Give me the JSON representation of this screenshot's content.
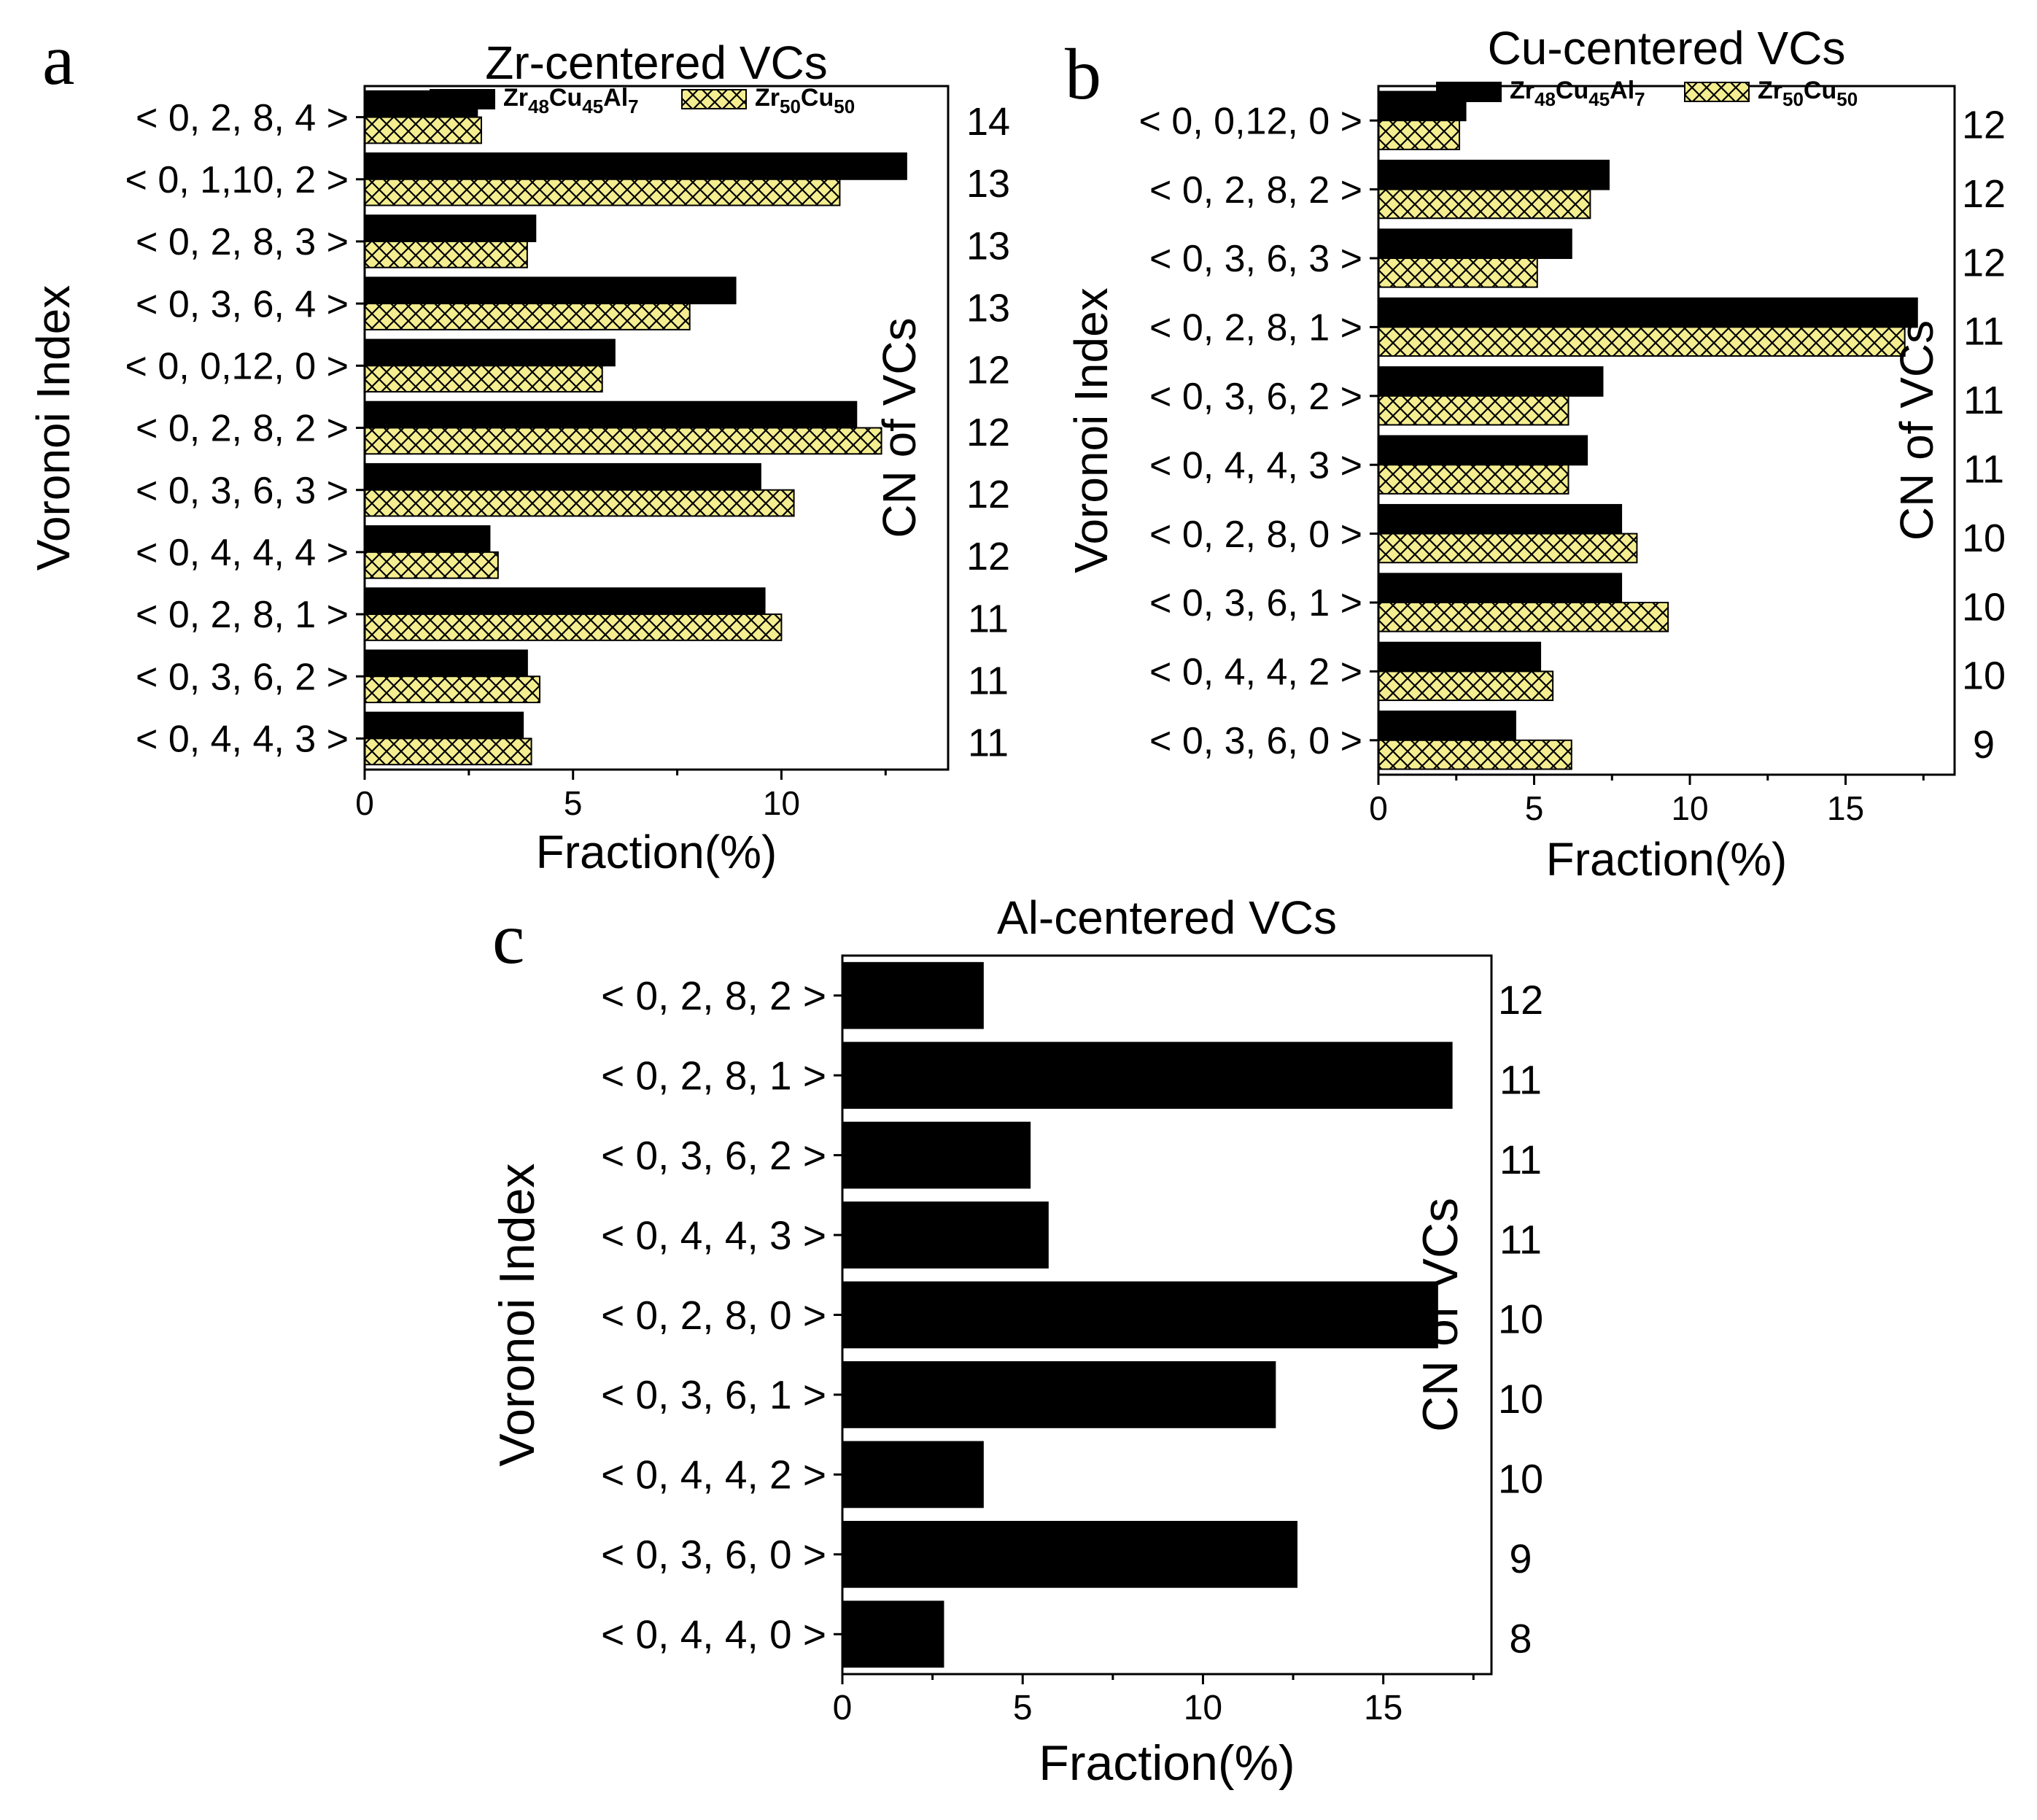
{
  "figure": {
    "colors": {
      "series_black": "#000000",
      "series_yellow": "#f4ee90",
      "hatch": "#000000",
      "axis": "#000000"
    }
  },
  "chart_data": [
    {
      "panel": "a",
      "type": "bar",
      "orientation": "horizontal",
      "title": "Zr-centered  VCs",
      "xlabel": "Fraction(%)",
      "ylabel": "Voronoi  Index",
      "ylabel_right": "CN  of  VCs",
      "xlim": [
        0,
        14
      ],
      "xticks": [
        "0",
        "5",
        "10"
      ],
      "categories": [
        "< 0, 2, 8, 4 >",
        "< 0, 1,10, 2 >",
        "< 0, 2, 8, 3 >",
        "< 0, 3, 6, 4 >",
        "< 0, 0,12, 0 >",
        "< 0, 2, 8, 2 >",
        "< 0, 3, 6, 3 >",
        "< 0, 4, 4, 4 >",
        "< 0, 2, 8, 1 >",
        "< 0, 3, 6, 2 >",
        "< 0, 4, 4, 3 >"
      ],
      "cn": [
        "14",
        "13",
        "13",
        "13",
        "12",
        "12",
        "12",
        "12",
        "11",
        "11",
        "11"
      ],
      "series": [
        {
          "name": "Zr48Cu45Al7",
          "label_parts": [
            "Zr",
            "48",
            "Cu",
            "45",
            "Al",
            "7"
          ],
          "style": "solid",
          "values": [
            2.7,
            13.0,
            4.1,
            8.9,
            6.0,
            11.8,
            9.5,
            3.0,
            9.6,
            3.9,
            3.8
          ]
        },
        {
          "name": "Zr50Cu50",
          "label_parts": [
            "Zr",
            "50",
            "Cu",
            "50"
          ],
          "style": "hatched",
          "values": [
            2.8,
            11.4,
            3.9,
            7.8,
            5.7,
            12.4,
            10.3,
            3.2,
            10.0,
            4.2,
            4.0
          ]
        }
      ],
      "legend": "top-right"
    },
    {
      "panel": "b",
      "type": "bar",
      "orientation": "horizontal",
      "title": "Cu-centered  VCs",
      "xlabel": "Fraction(%)",
      "ylabel": "Voronoi  Index",
      "ylabel_right": "CN  of  VCs",
      "xlim": [
        0,
        18.5
      ],
      "xticks": [
        "0",
        "5",
        "10",
        "15"
      ],
      "categories": [
        "< 0, 0,12, 0 >",
        "< 0, 2, 8, 2 >",
        "< 0, 3, 6, 3 >",
        "< 0, 2, 8, 1 >",
        "< 0, 3, 6, 2 >",
        "< 0, 4, 4, 3 >",
        "< 0, 2, 8, 0 >",
        "< 0, 3, 6, 1 >",
        "< 0, 4, 4, 2 >",
        "< 0, 3, 6, 0 >"
      ],
      "cn": [
        "12",
        "12",
        "12",
        "11",
        "11",
        "11",
        "10",
        "10",
        "10",
        "9"
      ],
      "series": [
        {
          "name": "Zr48Cu45Al7",
          "label_parts": [
            "Zr",
            "48",
            "Cu",
            "45",
            "Al",
            "7"
          ],
          "style": "solid",
          "values": [
            2.8,
            7.4,
            6.2,
            17.3,
            7.2,
            6.7,
            7.8,
            7.8,
            5.2,
            4.4
          ]
        },
        {
          "name": "Zr50Cu50",
          "label_parts": [
            "Zr",
            "50",
            "Cu",
            "50"
          ],
          "style": "hatched",
          "values": [
            2.6,
            6.8,
            5.1,
            16.9,
            6.1,
            6.1,
            8.3,
            9.3,
            5.6,
            6.2
          ]
        }
      ],
      "legend": "top-right"
    },
    {
      "panel": "c",
      "type": "bar",
      "orientation": "horizontal",
      "title": "Al-centered  VCs",
      "xlabel": "Fraction(%)",
      "ylabel": "Voronoi  Index",
      "ylabel_right": "CN  of  VCs",
      "xlim": [
        0,
        18
      ],
      "xticks": [
        "0",
        "5",
        "10",
        "15"
      ],
      "categories": [
        "< 0, 2, 8, 2 >",
        "< 0, 2, 8, 1 >",
        "< 0, 3, 6, 2 >",
        "< 0, 4, 4, 3 >",
        "< 0, 2, 8, 0 >",
        "< 0, 3, 6, 1 >",
        "< 0, 4, 4, 2 >",
        "< 0, 3, 6, 0 >",
        "< 0, 4, 4, 0 >"
      ],
      "cn": [
        "12",
        "11",
        "11",
        "11",
        "10",
        "10",
        "10",
        "9",
        "8"
      ],
      "series": [
        {
          "name": "Zr48Cu45Al7",
          "style": "solid",
          "values": [
            3.9,
            16.9,
            5.2,
            5.7,
            16.5,
            12.0,
            3.9,
            12.6,
            2.8
          ]
        }
      ],
      "legend": "none"
    }
  ]
}
